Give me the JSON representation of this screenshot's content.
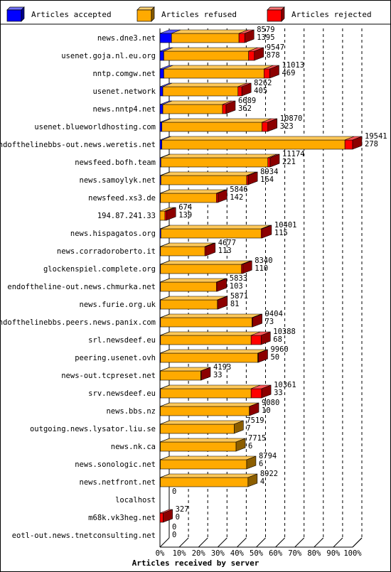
{
  "colors": {
    "accepted": "#0000ff",
    "refused": "#ffaa00",
    "rejected": "#ff0000"
  },
  "legend": [
    {
      "key": "accepted",
      "label": "Articles accepted"
    },
    {
      "key": "refused",
      "label": "Articles refused"
    },
    {
      "key": "rejected",
      "label": "Articles rejected"
    }
  ],
  "chart_data": {
    "type": "bar",
    "orientation": "horizontal",
    "stacked": true,
    "title": "Articles received by server",
    "x_ticks": [
      "0%",
      "10%",
      "20%",
      "30%",
      "40%",
      "50%",
      "60%",
      "70%",
      "80%",
      "90%",
      "100%"
    ],
    "xlim": [
      0,
      100
    ],
    "grid": "vertical dashed",
    "legend_position": "top",
    "max_total": 19541,
    "rows": [
      {
        "name": "news.dne3.net",
        "total": "8579",
        "rejected_count": "1395",
        "accepted": 6,
        "refused": 35,
        "rejected": 3
      },
      {
        "name": "usenet.goja.nl.eu.org",
        "total": "9547",
        "rejected_count": "878",
        "accepted": 2,
        "refused": 44,
        "rejected": 3
      },
      {
        "name": "nntp.comgw.net",
        "total": "11013",
        "rejected_count": "469",
        "accepted": 2,
        "refused": 52,
        "rejected": 3
      },
      {
        "name": "usenet.network",
        "total": "8262",
        "rejected_count": "405",
        "accepted": 1.5,
        "refused": 39,
        "rejected": 2
      },
      {
        "name": "news.nntp4.net",
        "total": "6689",
        "rejected_count": "362",
        "accepted": 1.5,
        "refused": 31,
        "rejected": 1.8
      },
      {
        "name": "usenet.blueworldhosting.com",
        "total": "10870",
        "rejected_count": "323",
        "accepted": 1,
        "refused": 52,
        "rejected": 3
      },
      {
        "name": "endofthelinebbs-out.news.weretis.net",
        "total": "19541",
        "rejected_count": "278",
        "accepted": 1,
        "refused": 95,
        "rejected": 4
      },
      {
        "name": "newsfeed.bofh.team",
        "total": "11174",
        "rejected_count": "221",
        "accepted": 0.5,
        "refused": 55.5,
        "rejected": 1.2
      },
      {
        "name": "news.samoylyk.net",
        "total": "8934",
        "rejected_count": "164",
        "accepted": 0.5,
        "refused": 44.5,
        "rejected": 0.8
      },
      {
        "name": "newsfeed.xs3.de",
        "total": "5846",
        "rejected_count": "142",
        "accepted": 0.3,
        "refused": 29,
        "rejected": 0.7
      },
      {
        "name": "194.87.241.33",
        "total": "674",
        "rejected_count": "139",
        "accepted": 0,
        "refused": 2.6,
        "rejected": 0.8
      },
      {
        "name": "news.hispagatos.org",
        "total": "10401",
        "rejected_count": "115",
        "accepted": 0.5,
        "refused": 52,
        "rejected": 0.6
      },
      {
        "name": "news.corradoroberto.it",
        "total": "4677",
        "rejected_count": "113",
        "accepted": 0.3,
        "refused": 23,
        "rejected": 0.6
      },
      {
        "name": "glockenspiel.complete.org",
        "total": "8340",
        "rejected_count": "110",
        "accepted": 0.3,
        "refused": 42,
        "rejected": 0.6
      },
      {
        "name": "endoftheline-out.news.chmurka.net",
        "total": "5833",
        "rejected_count": "103",
        "accepted": 0.3,
        "refused": 29,
        "rejected": 0.5
      },
      {
        "name": "news.furie.org.uk",
        "total": "5871",
        "rejected_count": "81",
        "accepted": 0.3,
        "refused": 29.5,
        "rejected": 0.4
      },
      {
        "name": "endofthelinebbs.peers.news.panix.com",
        "total": "9404",
        "rejected_count": "73",
        "accepted": 0.3,
        "refused": 47.5,
        "rejected": 0.4
      },
      {
        "name": "srl.newsdeef.eu",
        "total": "10388",
        "rejected_count": "68",
        "accepted": 0.3,
        "refused": 47,
        "rejected": 5.2
      },
      {
        "name": "peering.usenet.ovh",
        "total": "9960",
        "rejected_count": "50",
        "accepted": 0.3,
        "refused": 50.5,
        "rejected": 0.3
      },
      {
        "name": "news-out.tcpreset.net",
        "total": "4193",
        "rejected_count": "33",
        "accepted": 0.2,
        "refused": 21,
        "rejected": 0.2
      },
      {
        "name": "srv.newsdeef.eu",
        "total": "10361",
        "rejected_count": "33",
        "accepted": 0.3,
        "refused": 47,
        "rejected": 5.5
      },
      {
        "name": "news.bbs.nz",
        "total": "9080",
        "rejected_count": "10",
        "accepted": 0.2,
        "refused": 46.2,
        "rejected": 0.1
      },
      {
        "name": "outgoing.news.lysator.liu.se",
        "total": "7519",
        "rejected_count": "7",
        "accepted": 0.2,
        "refused": 38.3,
        "rejected": 0
      },
      {
        "name": "news.nk.ca",
        "total": "7715",
        "rejected_count": "6",
        "accepted": 0.2,
        "refused": 39.3,
        "rejected": 0
      },
      {
        "name": "news.sonologic.net",
        "total": "8794",
        "rejected_count": "6",
        "accepted": 0.2,
        "refused": 44.8,
        "rejected": 0
      },
      {
        "name": "news.netfront.net",
        "total": "8922",
        "rejected_count": "4",
        "accepted": 0.2,
        "refused": 45.5,
        "rejected": 0
      },
      {
        "name": "localhost",
        "total": "0",
        "rejected_count": "",
        "accepted": 0,
        "refused": 0,
        "rejected": 0
      },
      {
        "name": "m68k.vk3heg.net",
        "total": "327",
        "rejected_count": "0",
        "accepted": 0,
        "refused": 0,
        "rejected": 1.7
      },
      {
        "name": "eotl-out.news.tnetconsulting.net",
        "total": "0",
        "rejected_count": "0",
        "accepted": 0,
        "refused": 0,
        "rejected": 0
      }
    ]
  }
}
